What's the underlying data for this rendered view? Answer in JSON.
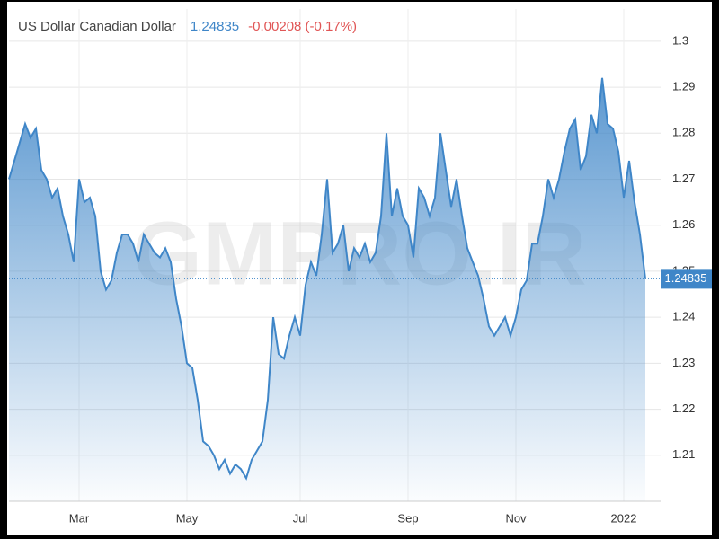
{
  "chart_data": {
    "type": "area",
    "title": "US Dollar Canadian Dollar",
    "change_label": "-0.00208 (-0.17%)",
    "watermark": "GMPRO.IR",
    "color": "#3f86c8",
    "grid": true,
    "categories": [
      null,
      null,
      null,
      null,
      null,
      null,
      null,
      null,
      null,
      null,
      null,
      null,
      null,
      "Mar",
      null,
      null,
      null,
      null,
      null,
      null,
      null,
      null,
      null,
      null,
      null,
      null,
      null,
      null,
      null,
      null,
      null,
      null,
      null,
      "May",
      null,
      null,
      null,
      null,
      null,
      null,
      null,
      null,
      null,
      null,
      null,
      null,
      null,
      null,
      null,
      null,
      null,
      null,
      null,
      null,
      "Jul",
      null,
      null,
      null,
      null,
      null,
      null,
      null,
      null,
      null,
      null,
      null,
      null,
      null,
      null,
      null,
      null,
      null,
      null,
      null,
      "Sep",
      null,
      null,
      null,
      null,
      null,
      null,
      null,
      null,
      null,
      null,
      null,
      null,
      null,
      null,
      null,
      null,
      null,
      null,
      null,
      "Nov",
      null,
      null,
      null,
      null,
      null,
      null,
      null,
      null,
      null,
      null,
      null,
      null,
      null,
      null,
      null,
      null,
      null,
      null,
      null,
      "2022",
      null,
      null,
      null,
      null
    ],
    "values": [
      1.27,
      1.274,
      1.278,
      1.282,
      1.279,
      1.281,
      1.272,
      1.27,
      1.266,
      1.268,
      1.262,
      1.258,
      1.252,
      1.27,
      1.265,
      1.266,
      1.262,
      1.25,
      1.246,
      1.248,
      1.254,
      1.258,
      1.258,
      1.256,
      1.252,
      1.258,
      1.256,
      1.254,
      1.253,
      1.255,
      1.252,
      1.244,
      1.238,
      1.23,
      1.229,
      1.222,
      1.213,
      1.212,
      1.21,
      1.207,
      1.209,
      1.206,
      1.208,
      1.207,
      1.205,
      1.209,
      1.211,
      1.213,
      1.222,
      1.24,
      1.232,
      1.231,
      1.236,
      1.24,
      1.236,
      1.247,
      1.252,
      1.249,
      1.258,
      1.27,
      1.254,
      1.256,
      1.26,
      1.25,
      1.255,
      1.253,
      1.256,
      1.252,
      1.254,
      1.262,
      1.28,
      1.262,
      1.268,
      1.262,
      1.26,
      1.253,
      1.268,
      1.266,
      1.262,
      1.266,
      1.28,
      1.272,
      1.264,
      1.27,
      1.262,
      1.255,
      1.252,
      1.249,
      1.244,
      1.238,
      1.236,
      1.238,
      1.24,
      1.236,
      1.24,
      1.246,
      1.248,
      1.256,
      1.256,
      1.262,
      1.27,
      1.266,
      1.27,
      1.276,
      1.281,
      1.283,
      1.272,
      1.275,
      1.284,
      1.28,
      1.292,
      1.282,
      1.281,
      1.276,
      1.266,
      1.274,
      1.265,
      1.258,
      1.24835
    ],
    "ylim": [
      1.2,
      1.307
    ],
    "yticks": [
      1.21,
      1.22,
      1.23,
      1.24,
      1.25,
      1.26,
      1.27,
      1.28,
      1.29,
      1.3
    ]
  }
}
